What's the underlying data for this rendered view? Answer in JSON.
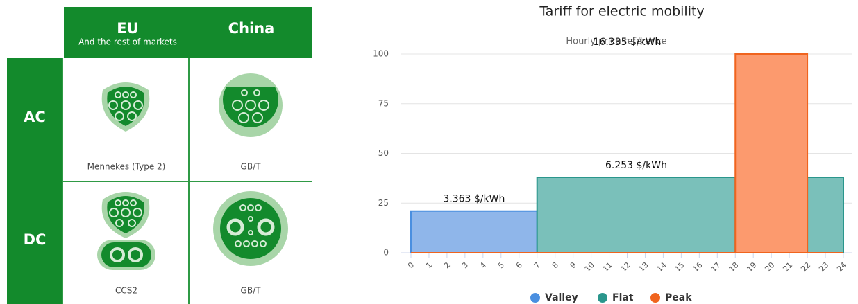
{
  "table": {
    "headers": [
      {
        "title": "EU",
        "subtitle": "And the rest of markets"
      },
      {
        "title": "China"
      }
    ],
    "rows": [
      {
        "label": "AC",
        "cells": [
          "Mennekes (Type 2)",
          "GB/T"
        ]
      },
      {
        "label": "DC",
        "cells": [
          "CCS2",
          "GB/T"
        ]
      }
    ]
  },
  "chart_data": {
    "type": "area",
    "step": true,
    "title": "Tariff for electric mobility",
    "subtitle": "Hourly price reference",
    "xlim": [
      0,
      24
    ],
    "xticks": [
      0,
      1,
      2,
      3,
      4,
      5,
      6,
      7,
      8,
      9,
      10,
      11,
      12,
      13,
      14,
      15,
      16,
      17,
      18,
      19,
      20,
      21,
      22,
      23,
      24
    ],
    "ylim": [
      0,
      100
    ],
    "yticks": [
      0,
      25,
      50,
      75,
      100
    ],
    "grid": true,
    "legend": "bottom",
    "series": [
      {
        "name": "Valley",
        "color": "#4a8fe0",
        "fill": "#8fb6ea",
        "x": [
          0,
          7
        ],
        "values": [
          21,
          21
        ],
        "annotation": "3.363 $/kWh"
      },
      {
        "name": "Flat",
        "color": "#2a968c",
        "fill": "#7ac0ba",
        "x": [
          7,
          18,
          20,
          22,
          24
        ],
        "values": [
          38,
          38,
          null,
          38,
          38
        ],
        "annotation": "6.253 $/kWh"
      },
      {
        "name": "Peak",
        "color": "#f0641e",
        "fill": "#fc9a6e",
        "x": [
          0,
          18,
          18,
          22,
          22,
          24
        ],
        "values": [
          0,
          0,
          100,
          100,
          0,
          0
        ],
        "annotation": "16.335 $/kWh"
      }
    ]
  }
}
